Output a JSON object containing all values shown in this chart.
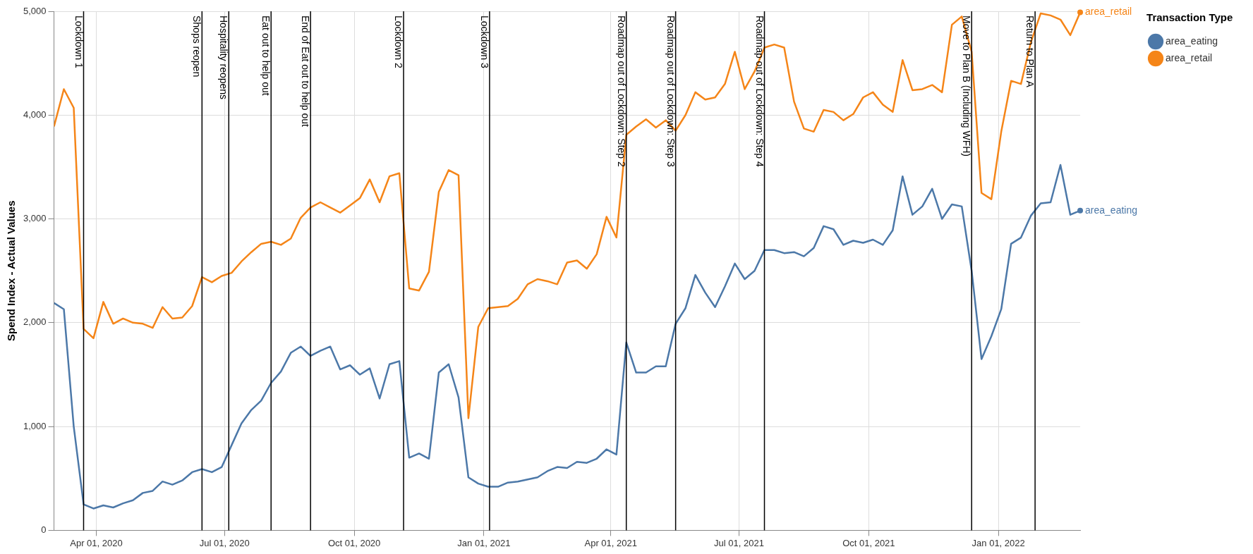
{
  "chart_data": {
    "type": "line",
    "ylabel": "Spend Index - Actual Values",
    "legend_title": "Transaction Type",
    "legend": "top right",
    "grid": true,
    "x": [
      "2020-03-02",
      "2020-03-09",
      "2020-03-16",
      "2020-03-23",
      "2020-03-30",
      "2020-04-06",
      "2020-04-13",
      "2020-04-20",
      "2020-04-27",
      "2020-05-04",
      "2020-05-11",
      "2020-05-18",
      "2020-05-25",
      "2020-06-01",
      "2020-06-08",
      "2020-06-15",
      "2020-06-22",
      "2020-06-29",
      "2020-07-06",
      "2020-07-13",
      "2020-07-20",
      "2020-07-27",
      "2020-08-03",
      "2020-08-10",
      "2020-08-17",
      "2020-08-24",
      "2020-08-31",
      "2020-09-07",
      "2020-09-14",
      "2020-09-21",
      "2020-09-28",
      "2020-10-05",
      "2020-10-12",
      "2020-10-19",
      "2020-10-26",
      "2020-11-02",
      "2020-11-09",
      "2020-11-16",
      "2020-11-23",
      "2020-11-30",
      "2020-12-07",
      "2020-12-14",
      "2020-12-21",
      "2020-12-28",
      "2021-01-04",
      "2021-01-11",
      "2021-01-18",
      "2021-01-25",
      "2021-02-01",
      "2021-02-08",
      "2021-02-15",
      "2021-02-22",
      "2021-03-01",
      "2021-03-08",
      "2021-03-15",
      "2021-03-22",
      "2021-03-29",
      "2021-04-05",
      "2021-04-12",
      "2021-04-19",
      "2021-04-26",
      "2021-05-03",
      "2021-05-10",
      "2021-05-17",
      "2021-05-24",
      "2021-05-31",
      "2021-06-07",
      "2021-06-14",
      "2021-06-21",
      "2021-06-28",
      "2021-07-05",
      "2021-07-12",
      "2021-07-19",
      "2021-07-26",
      "2021-08-02",
      "2021-08-09",
      "2021-08-16",
      "2021-08-23",
      "2021-08-30",
      "2021-09-06",
      "2021-09-13",
      "2021-09-20",
      "2021-09-27",
      "2021-10-04",
      "2021-10-11",
      "2021-10-18",
      "2021-10-25",
      "2021-11-01",
      "2021-11-08",
      "2021-11-15",
      "2021-11-22",
      "2021-11-29",
      "2021-12-06",
      "2021-12-13",
      "2021-12-20",
      "2021-12-27",
      "2022-01-03",
      "2022-01-10",
      "2022-01-17",
      "2022-01-24",
      "2022-01-31",
      "2022-02-07",
      "2022-02-14",
      "2022-02-21",
      "2022-02-28"
    ],
    "series": [
      {
        "name": "area_eating",
        "color": "#4c78a8",
        "values": [
          2190,
          2130,
          1000,
          250,
          210,
          240,
          220,
          260,
          290,
          360,
          380,
          470,
          440,
          480,
          560,
          590,
          560,
          610,
          820,
          1030,
          1160,
          1250,
          1420,
          1530,
          1710,
          1770,
          1680,
          1730,
          1770,
          1550,
          1590,
          1500,
          1560,
          1270,
          1600,
          1630,
          700,
          740,
          690,
          1520,
          1600,
          1280,
          510,
          450,
          420,
          420,
          460,
          470,
          490,
          510,
          570,
          610,
          600,
          660,
          650,
          690,
          780,
          730,
          1810,
          1520,
          1520,
          1580,
          1580,
          1990,
          2140,
          2460,
          2290,
          2150,
          2350,
          2570,
          2420,
          2500,
          2700,
          2700,
          2670,
          2680,
          2640,
          2720,
          2930,
          2900,
          2750,
          2790,
          2770,
          2800,
          2750,
          2890,
          3410,
          3040,
          3120,
          3290,
          3000,
          3140,
          3120,
          2500,
          1650,
          1870,
          2130,
          2760,
          2820,
          3030,
          3150,
          3160,
          3520,
          3040,
          3080
        ]
      },
      {
        "name": "area_retail",
        "color": "#f58518",
        "values": [
          3890,
          4250,
          4070,
          1940,
          1850,
          2200,
          1990,
          2040,
          2000,
          1990,
          1950,
          2150,
          2040,
          2050,
          2160,
          2440,
          2390,
          2450,
          2480,
          2590,
          2680,
          2760,
          2780,
          2750,
          2810,
          3010,
          3110,
          3160,
          3110,
          3060,
          3130,
          3200,
          3380,
          3160,
          3410,
          3440,
          2330,
          2310,
          2490,
          3260,
          3470,
          3420,
          1080,
          1960,
          2140,
          2150,
          2160,
          2230,
          2370,
          2420,
          2400,
          2370,
          2580,
          2600,
          2520,
          2660,
          3020,
          2820,
          3810,
          3890,
          3960,
          3880,
          3950,
          3850,
          4000,
          4220,
          4150,
          4170,
          4300,
          4610,
          4250,
          4420,
          4650,
          4680,
          4650,
          4130,
          3870,
          3840,
          4050,
          4030,
          3950,
          4010,
          4170,
          4220,
          4100,
          4030,
          4530,
          4240,
          4250,
          4290,
          4220,
          4870,
          4950,
          4610,
          3250,
          3190,
          3840,
          4330,
          4300,
          4700,
          4980,
          4960,
          4920,
          4770,
          4990
        ]
      }
    ],
    "xlim": [
      "2020-03-02",
      "2022-02-28"
    ],
    "xticks": [
      {
        "value": "2020-04-01",
        "label": "Apr 01, 2020"
      },
      {
        "value": "2020-07-01",
        "label": "Jul 01, 2020"
      },
      {
        "value": "2020-10-01",
        "label": "Oct 01, 2020"
      },
      {
        "value": "2021-01-01",
        "label": "Jan 01, 2021"
      },
      {
        "value": "2021-04-01",
        "label": "Apr 01, 2021"
      },
      {
        "value": "2021-07-01",
        "label": "Jul 01, 2021"
      },
      {
        "value": "2021-10-01",
        "label": "Oct 01, 2021"
      },
      {
        "value": "2022-01-01",
        "label": "Jan 01, 2022"
      }
    ],
    "ylim": [
      0,
      5000
    ],
    "yticks": [
      0,
      {
        "value": 1000,
        "label": "1,000"
      },
      {
        "value": 2000,
        "label": "2,000"
      },
      {
        "value": 3000,
        "label": "3,000"
      },
      {
        "value": 4000,
        "label": "4,000"
      },
      {
        "value": 5000,
        "label": "5,000"
      }
    ],
    "ref_lines": [
      {
        "axis": "x",
        "value": "2020-03-23",
        "label": "Lockdown 1",
        "color": "#000000"
      },
      {
        "axis": "x",
        "value": "2020-06-15",
        "label": "Shops reopen",
        "color": "#000000"
      },
      {
        "axis": "x",
        "value": "2020-07-04",
        "label": "Hospitality reopens",
        "color": "#000000"
      },
      {
        "axis": "x",
        "value": "2020-08-03",
        "label": "Eat out to help out",
        "color": "#000000"
      },
      {
        "axis": "x",
        "value": "2020-08-31",
        "label": "End of Eat out to help out",
        "color": "#000000"
      },
      {
        "axis": "x",
        "value": "2020-11-05",
        "label": "Lockdown 2",
        "color": "#000000"
      },
      {
        "axis": "x",
        "value": "2021-01-05",
        "label": "Lockdown 3",
        "color": "#000000"
      },
      {
        "axis": "x",
        "value": "2021-04-12",
        "label": "Roadmap out of Lockdown: Step 2",
        "color": "#000000"
      },
      {
        "axis": "x",
        "value": "2021-05-17",
        "label": "Roadmap out of Lockdown: Step 3",
        "color": "#000000"
      },
      {
        "axis": "x",
        "value": "2021-07-19",
        "label": "Roadmap out of Lockdown: Step 4",
        "color": "#000000"
      },
      {
        "axis": "x",
        "value": "2021-12-13",
        "label": "Move to Plan B (Including WFH)",
        "color": "#000000"
      },
      {
        "axis": "x",
        "value": "2022-01-27",
        "label": "Return to Plan A",
        "color": "#000000"
      }
    ]
  }
}
